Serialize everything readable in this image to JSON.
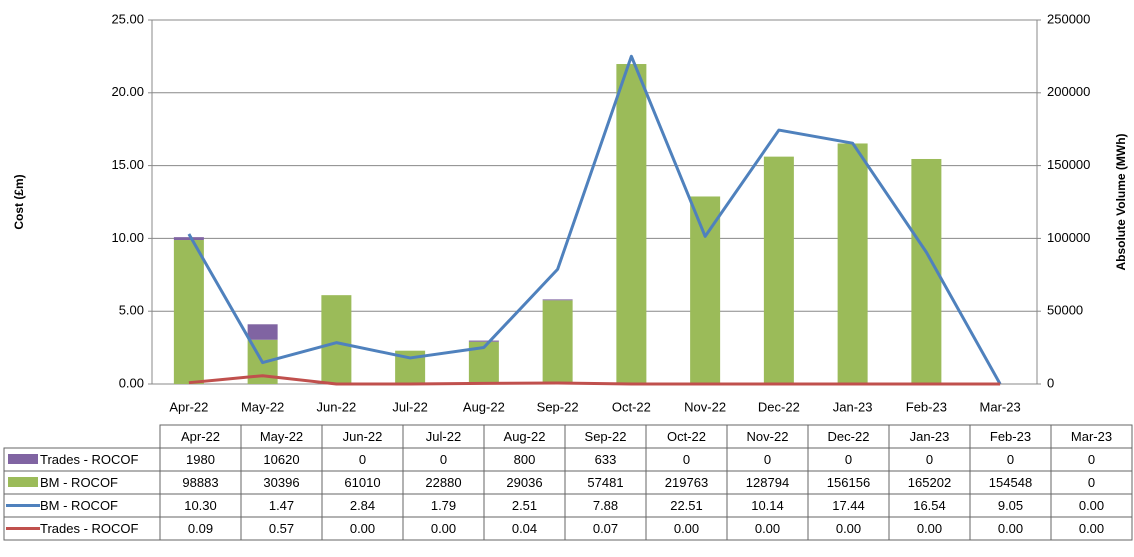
{
  "chart_data": {
    "type": "combo",
    "categories": [
      "Apr-22",
      "May-22",
      "Jun-22",
      "Jul-22",
      "Aug-22",
      "Sep-22",
      "Oct-22",
      "Nov-22",
      "Dec-22",
      "Jan-23",
      "Feb-23",
      "Mar-23"
    ],
    "y_label": "Cost (£m)",
    "y2_label": "Absolute Volume (MWh)",
    "ylim": [
      0,
      25
    ],
    "yticks": [
      {
        "value": 0,
        "label": "0.00"
      },
      {
        "value": 5,
        "label": "5.00"
      },
      {
        "value": 10,
        "label": "10.00"
      },
      {
        "value": 15,
        "label": "15.00"
      },
      {
        "value": 20,
        "label": "20.00"
      },
      {
        "value": 25,
        "label": "25.00"
      }
    ],
    "y2lim": [
      0,
      250000
    ],
    "y2ticks": [
      0,
      50000,
      100000,
      150000,
      200000,
      250000
    ],
    "grid": true,
    "series": [
      {
        "name": "Trades - ROCOF",
        "type": "bar",
        "axis": "y2",
        "color": "#8064a2",
        "values": [
          1980,
          10620,
          0,
          0,
          800,
          633,
          0,
          0,
          0,
          0,
          0,
          0
        ]
      },
      {
        "name": "BM - ROCOF",
        "type": "bar",
        "axis": "y2",
        "color": "#9bbb59",
        "values": [
          98883,
          30396,
          61010,
          22880,
          29036,
          57481,
          219763,
          128794,
          156156,
          165202,
          154548,
          0
        ]
      },
      {
        "name": "BM - ROCOF",
        "type": "line",
        "color": "#4f81bd",
        "values": [
          10.3,
          1.47,
          2.84,
          1.79,
          2.51,
          7.88,
          22.51,
          10.14,
          17.44,
          16.54,
          9.05,
          0
        ],
        "value_labels": [
          "10.30",
          "1.47",
          "2.84",
          "1.79",
          "2.51",
          "7.88",
          "22.51",
          "10.14",
          "17.44",
          "16.54",
          "9.05",
          "0.00"
        ]
      },
      {
        "name": "Trades - ROCOF",
        "type": "line",
        "color": "#c0504d",
        "values": [
          0.09,
          0.57,
          0,
          0,
          0.04,
          0.07,
          0,
          0,
          0,
          0,
          0,
          0
        ],
        "value_labels": [
          "0.09",
          "0.57",
          "0.00",
          "0.00",
          "0.04",
          "0.07",
          "0.00",
          "0.00",
          "0.00",
          "0.00",
          "0.00",
          "0.00"
        ]
      }
    ]
  }
}
